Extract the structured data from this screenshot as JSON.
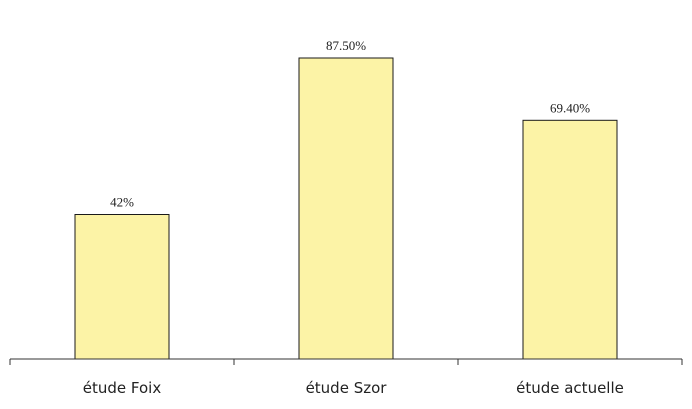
{
  "chart_data": {
    "type": "bar",
    "title": "",
    "xlabel": "",
    "ylabel": "",
    "categories": [
      "étude Foix",
      "étude Szor",
      "étude actuelle"
    ],
    "values": [
      42,
      87.5,
      69.4
    ],
    "value_labels": [
      "42%",
      "87.50%",
      "69.40%"
    ],
    "unit": "%",
    "ylim": [
      0,
      100
    ],
    "grid": false,
    "legend": "none",
    "colors": {
      "bar_fill": "#fcf3a6",
      "bar_stroke": "#1a1a1a"
    }
  }
}
